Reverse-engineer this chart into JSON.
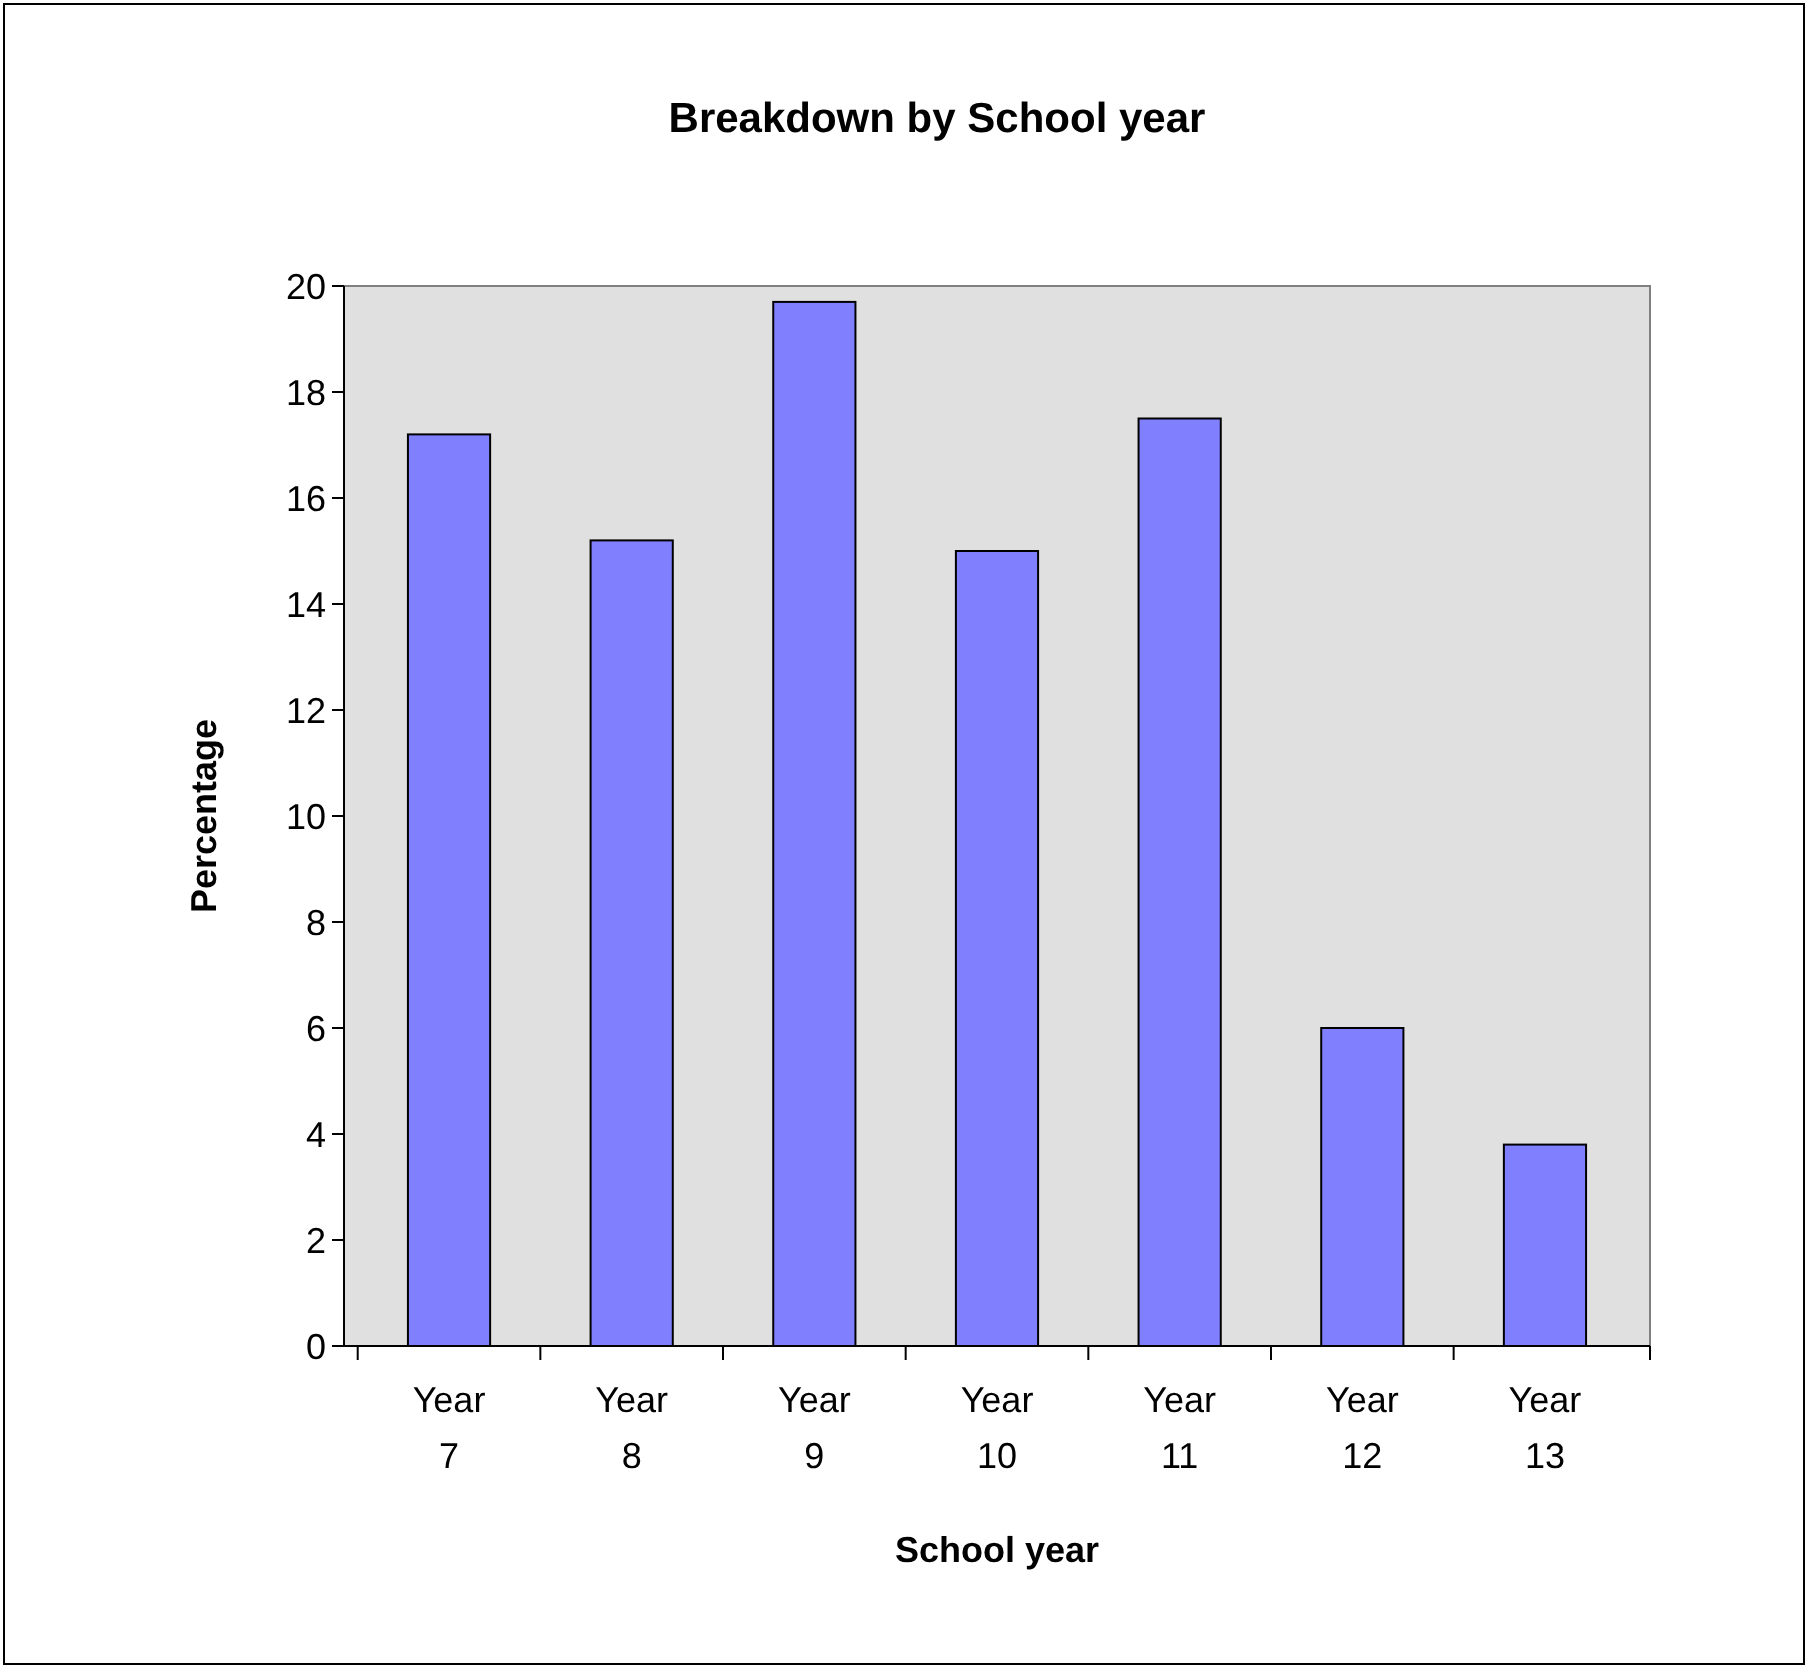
{
  "chart_data": {
    "type": "bar",
    "title": "Breakdown by School year",
    "xlabel": "School year",
    "ylabel": "Percentage",
    "categories": [
      "Year 7",
      "Year 8",
      "Year 9",
      "Year 10",
      "Year 11",
      "Year 12",
      "Year 13"
    ],
    "values": [
      17.2,
      15.2,
      19.7,
      15.0,
      17.5,
      6.0,
      3.8
    ],
    "color": "#8080ff",
    "ylim": [
      0,
      20
    ],
    "yticks": [
      0,
      2,
      4,
      6,
      8,
      10,
      12,
      14,
      16,
      18,
      20
    ],
    "grid": false
  }
}
